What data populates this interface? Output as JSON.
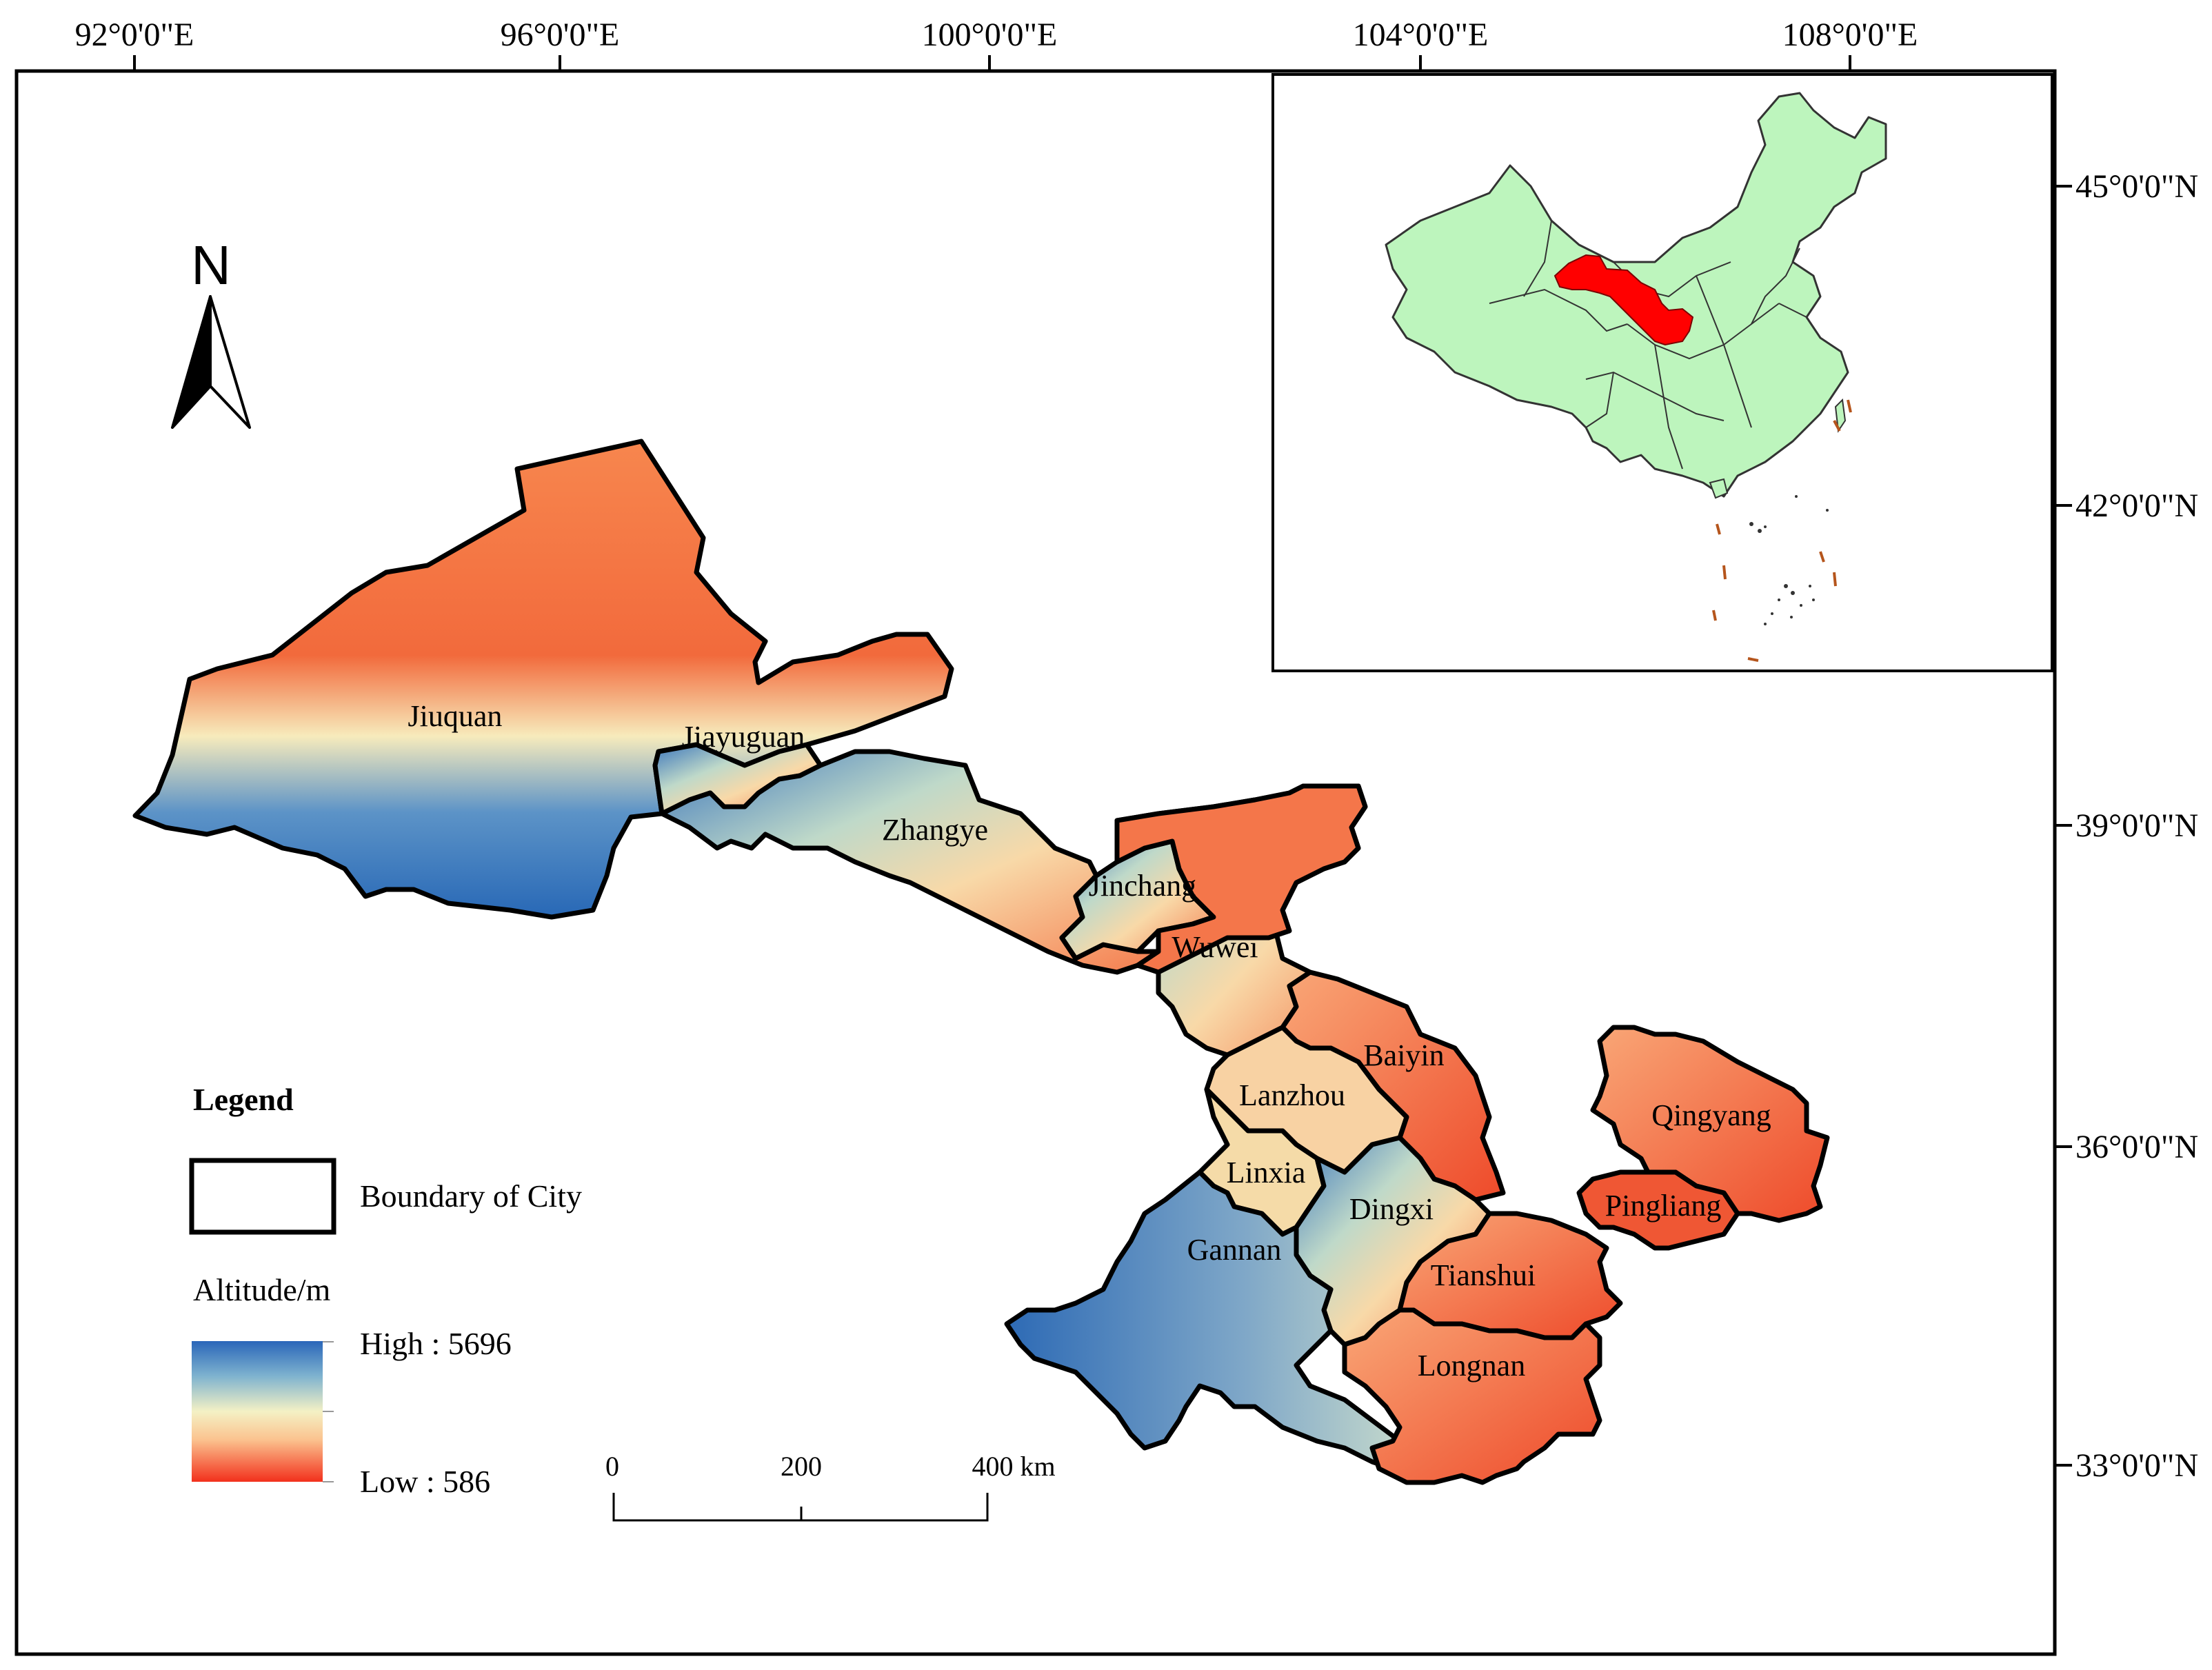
{
  "graticule": {
    "longitudes": [
      "92°0'0\"E",
      "96°0'0\"E",
      "100°0'0\"E",
      "104°0'0\"E",
      "108°0'0\"E"
    ],
    "latitudes": [
      "45°0'0\"N",
      "42°0'0\"N",
      "39°0'0\"N",
      "36°0'0\"N",
      "33°0'0\"N"
    ]
  },
  "north_arrow": {
    "label": "N"
  },
  "cities": [
    "Jiuquan",
    "Jiayuguan",
    "Zhangye",
    "Jinchang",
    "Wuwei",
    "Baiyin",
    "Lanzhou",
    "Linxia",
    "Dingxi",
    "Gannan",
    "Tianshui",
    "Longnan",
    "Qingyang",
    "Pingliang"
  ],
  "legend": {
    "title": "Legend",
    "boundary_label": "Boundary of City",
    "altitude_title": "Altitude/m",
    "high_label": "High : 5696",
    "low_label": "Low : 586",
    "high_color": "#1f5fb8",
    "mid_color": "#f3f1c6",
    "low_color": "#f2301c"
  },
  "scale_bar": {
    "ticks": [
      "0",
      "200",
      "400 km"
    ]
  },
  "inset": {
    "highlight_color": "#ff0000",
    "land_color": "#bdf5bd"
  }
}
